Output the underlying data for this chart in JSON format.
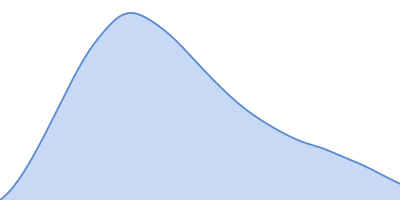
{
  "fill_color": "#c8d9f5",
  "line_color": "#5b8bd0",
  "line_width": 1.3,
  "background_color": "#ffffff",
  "fig_width": 4.0,
  "fig_height": 2.0,
  "dpi": 100,
  "x_points": [
    0.0,
    0.04,
    0.08,
    0.12,
    0.17,
    0.22,
    0.27,
    0.3,
    0.33,
    0.38,
    0.44,
    0.5,
    0.56,
    0.62,
    0.68,
    0.74,
    0.78,
    0.82,
    0.87,
    0.92,
    0.97,
    1.02
  ],
  "y_points": [
    -0.15,
    -0.05,
    0.1,
    0.28,
    0.52,
    0.74,
    0.9,
    0.97,
    1.0,
    0.96,
    0.85,
    0.7,
    0.55,
    0.42,
    0.32,
    0.24,
    0.2,
    0.17,
    0.12,
    0.07,
    0.01,
    -0.05
  ],
  "xlim": [
    0.0,
    1.02
  ],
  "ylim": [
    -0.15,
    1.08
  ]
}
